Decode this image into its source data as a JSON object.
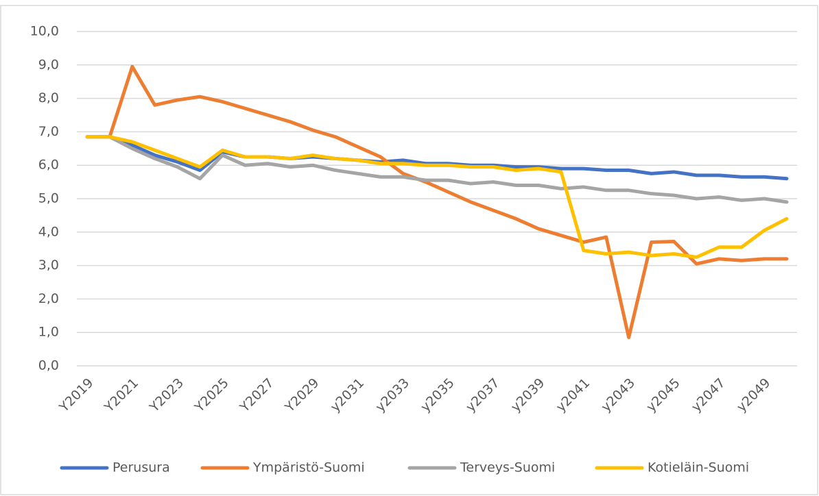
{
  "chart_data": {
    "type": "line",
    "categories": [
      "Y2019",
      null,
      "Y2021",
      null,
      "Y2023",
      null,
      "Y2025",
      null,
      "Y2027",
      null,
      "Y2029",
      null,
      "y2031",
      null,
      "y2033",
      null,
      "y2035",
      null,
      "y2037",
      null,
      "y2039",
      null,
      "y2041",
      null,
      "y2043",
      null,
      "y2045",
      null,
      "y2047",
      null,
      "y2049",
      null
    ],
    "series": [
      {
        "name": "Perusura",
        "color": "#4472c4",
        "values": [
          6.85,
          6.85,
          6.6,
          6.3,
          6.1,
          5.85,
          6.4,
          6.25,
          6.25,
          6.2,
          6.25,
          6.2,
          6.15,
          6.1,
          6.15,
          6.05,
          6.05,
          6.0,
          6.0,
          5.95,
          5.95,
          5.9,
          5.9,
          5.85,
          5.85,
          5.75,
          5.8,
          5.7,
          5.7,
          5.65,
          5.65,
          5.6
        ]
      },
      {
        "name": "Ympäristö-Suomi",
        "color": "#ed7d31",
        "values": [
          6.85,
          6.85,
          8.95,
          7.8,
          7.95,
          8.05,
          7.9,
          7.7,
          7.5,
          7.3,
          7.05,
          6.85,
          6.55,
          6.25,
          5.75,
          5.5,
          5.2,
          4.9,
          4.65,
          4.4,
          4.1,
          3.9,
          3.7,
          3.85,
          0.85,
          3.7,
          3.72,
          3.05,
          3.2,
          3.15,
          3.2,
          3.2
        ]
      },
      {
        "name": "Terveys-Suomi",
        "color": "#a5a5a5",
        "values": [
          6.85,
          6.85,
          6.5,
          6.2,
          5.95,
          5.6,
          6.3,
          6.0,
          6.05,
          5.95,
          6.0,
          5.85,
          5.75,
          5.65,
          5.65,
          5.55,
          5.55,
          5.45,
          5.5,
          5.4,
          5.4,
          5.3,
          5.35,
          5.25,
          5.25,
          5.15,
          5.1,
          5.0,
          5.05,
          4.95,
          5.0,
          4.9
        ]
      },
      {
        "name": "Kotieläin-Suomi",
        "color": "#ffc000",
        "values": [
          6.85,
          6.85,
          6.7,
          6.45,
          6.2,
          5.95,
          6.45,
          6.25,
          6.25,
          6.2,
          6.3,
          6.2,
          6.15,
          6.05,
          6.05,
          6.0,
          6.0,
          5.95,
          5.95,
          5.85,
          5.9,
          5.8,
          3.45,
          3.35,
          3.4,
          3.3,
          3.35,
          3.25,
          3.55,
          3.55,
          4.05,
          4.4
        ]
      }
    ],
    "ylim": [
      0,
      10
    ],
    "yticks": [
      {
        "value": 0,
        "label": "0,0"
      },
      {
        "value": 1,
        "label": "1,0"
      },
      {
        "value": 2,
        "label": "2,0"
      },
      {
        "value": 3,
        "label": "3,0"
      },
      {
        "value": 4,
        "label": "4,0"
      },
      {
        "value": 5,
        "label": "5,0"
      },
      {
        "value": 6,
        "label": "6,0"
      },
      {
        "value": 7,
        "label": "7,0"
      },
      {
        "value": 8,
        "label": "8,0"
      },
      {
        "value": 9,
        "label": "9,0"
      },
      {
        "value": 10,
        "label": "10,0"
      }
    ],
    "grid": true,
    "legend": "bottom"
  }
}
